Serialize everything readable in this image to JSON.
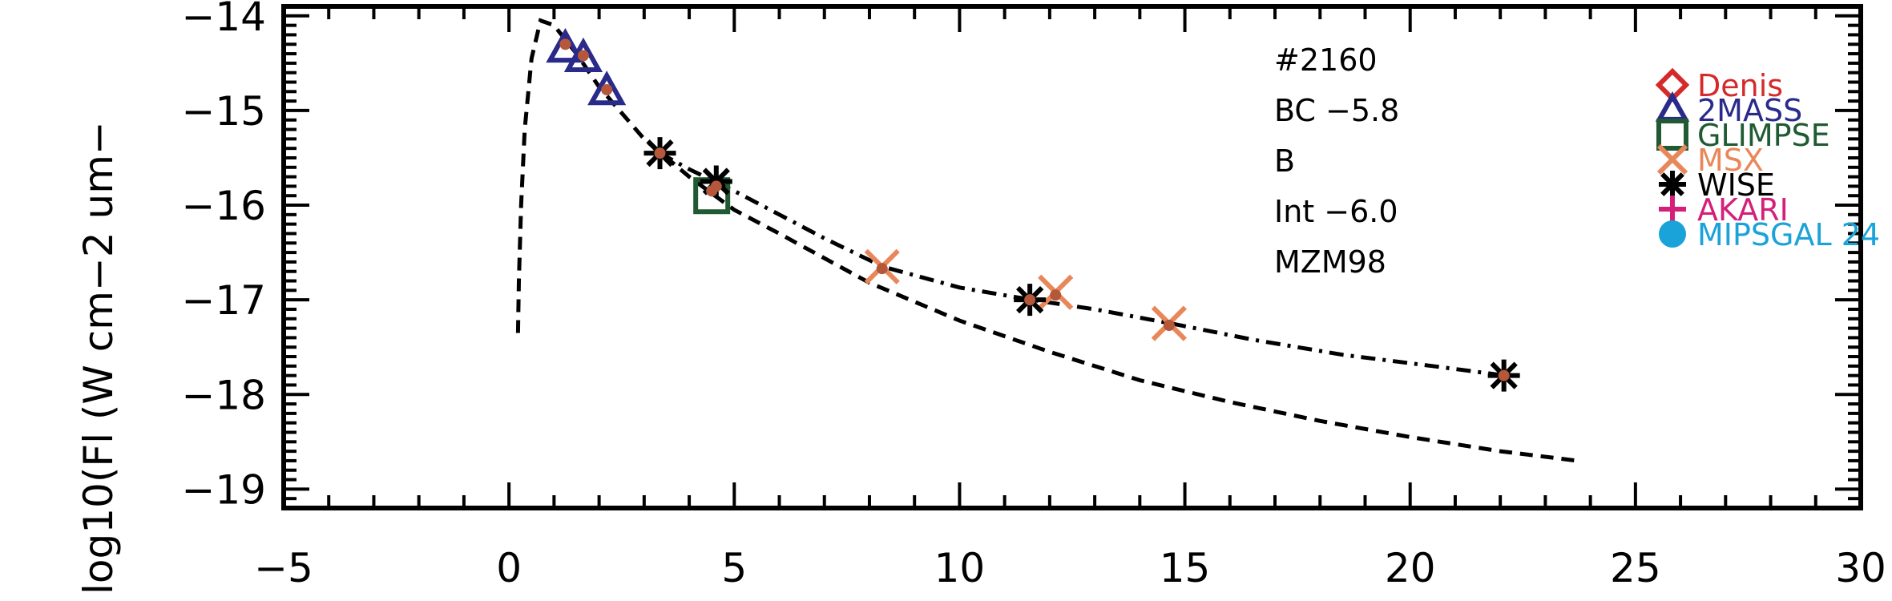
{
  "chart_data": {
    "type": "scatter",
    "ylabel": "log10(Fl (W cm−2 um−",
    "xlim": [
      -5,
      30
    ],
    "ylim": [
      -19.2,
      -13.9
    ],
    "x_ticks": [
      -5,
      0,
      5,
      10,
      15,
      20,
      25,
      30
    ],
    "x_tick_labels": [
      "−5",
      "0",
      "5",
      "10",
      "15",
      "20",
      "25",
      "30"
    ],
    "y_ticks": [
      -19,
      -18,
      -17,
      -16,
      -15,
      -14
    ],
    "y_tick_labels": [
      "−19",
      "−18",
      "−17",
      "−16",
      "−15",
      "−14"
    ],
    "annotations": [
      "#2160",
      "BC −5.8",
      "B",
      "Int −6.0",
      "MZM98"
    ],
    "legend": [
      {
        "name": "Denis",
        "marker": "diamond",
        "color": "#d42a2a"
      },
      {
        "name": "2MASS",
        "marker": "triangle",
        "color": "#2a2a8a"
      },
      {
        "name": "GLIMPSE",
        "marker": "square",
        "color": "#1f5a32"
      },
      {
        "name": "MSX",
        "marker": "x",
        "color": "#e8885a"
      },
      {
        "name": "WISE",
        "marker": "asterisk",
        "color": "#000000"
      },
      {
        "name": "AKARI",
        "marker": "plus",
        "color": "#d4207a"
      },
      {
        "name": "MIPSGAL 24",
        "marker": "circle",
        "color": "#1aa3d9"
      }
    ],
    "series": [
      {
        "name": "2MASS",
        "marker": "triangle",
        "color": "#2a2a8a",
        "x": [
          1.25,
          1.65,
          2.17
        ],
        "y": [
          -14.35,
          -14.45,
          -14.8
        ]
      },
      {
        "name": "GLIMPSE",
        "marker": "square",
        "color": "#1f5a32",
        "x": [
          4.5
        ],
        "y": [
          -15.9
        ]
      },
      {
        "name": "MSX",
        "marker": "x",
        "color": "#e8885a",
        "x": [
          8.28,
          12.13,
          14.65
        ],
        "y": [
          -16.65,
          -16.92,
          -17.25
        ]
      },
      {
        "name": "WISE",
        "marker": "asterisk",
        "color": "#000000",
        "x": [
          3.35,
          4.6,
          11.56,
          22.08
        ],
        "y": [
          -15.45,
          -15.75,
          -17.0,
          -17.8
        ]
      }
    ],
    "model_points": {
      "color": "#b5573a",
      "x": [
        1.25,
        1.65,
        2.17,
        3.35,
        4.5,
        4.6,
        8.28,
        11.56,
        12.13,
        14.65,
        22.08
      ],
      "y": [
        -14.3,
        -14.42,
        -14.78,
        -15.45,
        -15.85,
        -15.8,
        -16.67,
        -17.0,
        -16.95,
        -17.27,
        -17.8
      ]
    },
    "curves": [
      {
        "style": "dashed",
        "x": [
          0.2,
          0.22,
          0.27,
          0.35,
          0.5,
          0.7,
          1.0,
          1.5,
          2.0,
          3.0,
          4.0,
          5.0,
          6.0,
          8.0,
          10.0,
          12.0,
          14.0,
          16.0,
          18.0,
          20.0,
          22.0,
          23.7
        ],
        "y": [
          -17.35,
          -16.8,
          -16.0,
          -15.2,
          -14.45,
          -14.05,
          -14.1,
          -14.4,
          -14.75,
          -15.3,
          -15.7,
          -16.05,
          -16.3,
          -16.82,
          -17.22,
          -17.55,
          -17.85,
          -18.08,
          -18.28,
          -18.45,
          -18.6,
          -18.7
        ]
      },
      {
        "style": "dashdot",
        "x": [
          3.35,
          4.0,
          5.0,
          6.0,
          7.0,
          8.3,
          10.0,
          11.6,
          13.0,
          14.7,
          16.5,
          18.5,
          20.5,
          22.1
        ],
        "y": [
          -15.45,
          -15.62,
          -15.85,
          -16.1,
          -16.35,
          -16.65,
          -16.87,
          -17.0,
          -17.1,
          -17.25,
          -17.42,
          -17.58,
          -17.7,
          -17.8
        ]
      }
    ]
  }
}
